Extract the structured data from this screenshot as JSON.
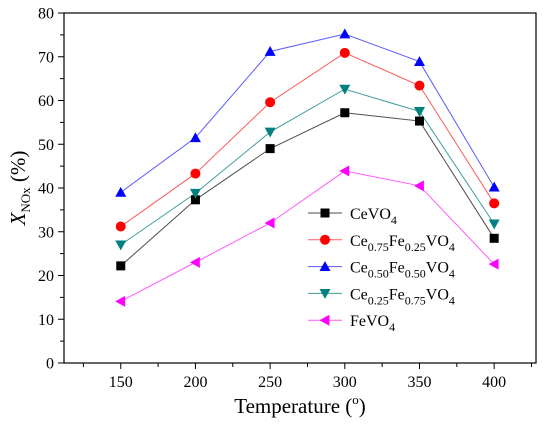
{
  "chart_data": {
    "type": "line",
    "xlabel": "Temperature (",
    "xlabel_unit_sup": "o",
    "xlabel_close": ")",
    "ylabel_main": "X",
    "ylabel_sub": "NOx",
    "ylabel_unit": "(%)",
    "xlim": [
      112,
      428
    ],
    "ylim": [
      0,
      80
    ],
    "x_ticks": [
      150,
      200,
      250,
      300,
      350,
      400
    ],
    "y_ticks": [
      0,
      10,
      20,
      30,
      40,
      50,
      60,
      70,
      80
    ],
    "grid": false,
    "legend_placement": "center-right",
    "x": [
      150,
      200,
      250,
      300,
      350,
      400
    ],
    "series": [
      {
        "name": "CeVO4",
        "label_parts": [
          [
            "CeVO",
            "n"
          ],
          [
            "4",
            "sub"
          ]
        ],
        "marker": "square",
        "color": "#000000",
        "line_color": "#4d4d4d",
        "values": [
          22.2,
          37.3,
          49.0,
          57.2,
          55.3,
          28.5
        ]
      },
      {
        "name": "Ce0.75Fe0.25VO4",
        "label_parts": [
          [
            "Ce",
            "n"
          ],
          [
            "0.75",
            "sub"
          ],
          [
            "Fe",
            "n"
          ],
          [
            "0.25",
            "sub"
          ],
          [
            "VO",
            "n"
          ],
          [
            "4",
            "sub"
          ]
        ],
        "marker": "circle",
        "color": "#ff0000",
        "line_color": "#ff5a5a",
        "values": [
          31.2,
          43.3,
          59.6,
          70.9,
          63.4,
          36.5
        ]
      },
      {
        "name": "Ce0.50Fe0.50VO4",
        "label_parts": [
          [
            "Ce",
            "n"
          ],
          [
            "0.50",
            "sub"
          ],
          [
            "Fe",
            "n"
          ],
          [
            "0.50",
            "sub"
          ],
          [
            "VO",
            "n"
          ],
          [
            "4",
            "sub"
          ]
        ],
        "marker": "triangle-up",
        "color": "#0000ff",
        "line_color": "#5a5aff",
        "values": [
          39.0,
          51.5,
          71.2,
          75.2,
          68.9,
          40.2
        ]
      },
      {
        "name": "Ce0.25Fe0.75VO4",
        "label_parts": [
          [
            "Ce",
            "n"
          ],
          [
            "0.25",
            "sub"
          ],
          [
            "Fe",
            "n"
          ],
          [
            "0.75",
            "sub"
          ],
          [
            "VO",
            "n"
          ],
          [
            "4",
            "sub"
          ]
        ],
        "marker": "triangle-down",
        "color": "#008080",
        "line_color": "#3c9c9c",
        "values": [
          27.0,
          38.8,
          52.8,
          62.6,
          57.5,
          31.8
        ]
      },
      {
        "name": "FeVO4",
        "label_parts": [
          [
            "FeVO",
            "n"
          ],
          [
            "4",
            "sub"
          ]
        ],
        "marker": "triangle-left",
        "color": "#ff00ff",
        "line_color": "#ff5aff",
        "values": [
          14.1,
          23.0,
          32.0,
          43.9,
          40.5,
          22.6
        ]
      }
    ]
  }
}
